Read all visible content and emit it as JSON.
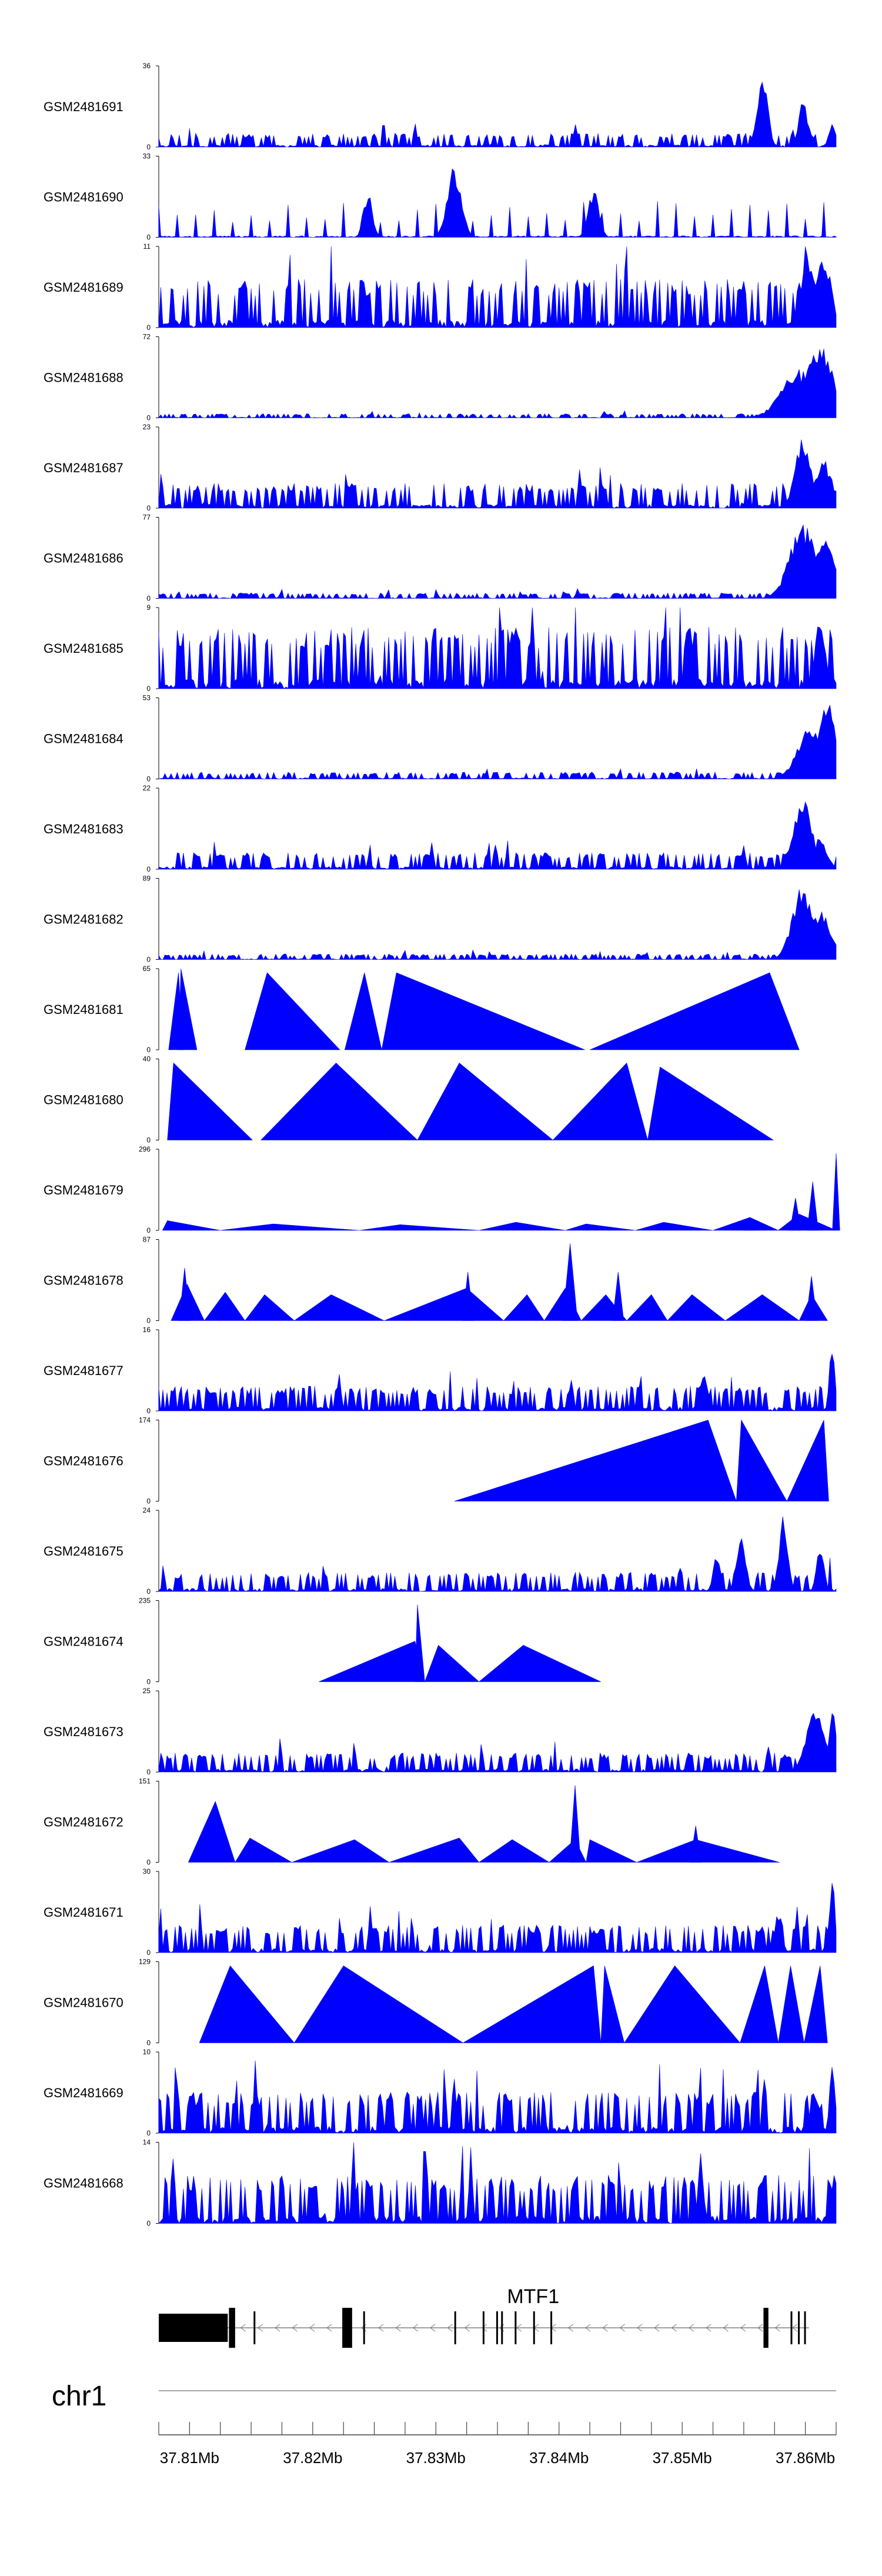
{
  "chart_data": {
    "type": "area",
    "title": "",
    "xlabel": "",
    "ylabel": "",
    "color": "#0000ff",
    "xlim": [
      37.8075,
      37.8625
    ],
    "tracks": [
      {
        "name": "GSM2481691",
        "ymax": "36",
        "ymin": "0",
        "style": "noise",
        "seed": 1,
        "density": 1.0,
        "base": 0.1,
        "peaks": [
          [
            37.8565,
            0.95,
            0.0006
          ],
          [
            37.8598,
            0.6,
            0.0005
          ],
          [
            37.8622,
            0.35,
            0.0004
          ]
        ]
      },
      {
        "name": "GSM2481690",
        "ymax": "33",
        "ymin": "0",
        "style": "spiky",
        "seed": 2,
        "count": 36,
        "lo": 0.18,
        "hi": 0.45,
        "peaks": [
          [
            37.8315,
            0.9,
            0.0008
          ],
          [
            37.8245,
            0.6,
            0.0005
          ],
          [
            37.8428,
            0.6,
            0.0006
          ]
        ]
      },
      {
        "name": "GSM2481689",
        "ymax": "11",
        "ymin": "0",
        "style": "noise",
        "seed": 3,
        "density": 1.0,
        "base": 0.35,
        "peaks": [
          [
            37.8602,
            0.9,
            0.0009
          ],
          [
            37.8615,
            0.95,
            0.0008
          ]
        ]
      },
      {
        "name": "GSM2481688",
        "ymax": "72",
        "ymin": "0",
        "style": "noise",
        "seed": 4,
        "density": 1.0,
        "base": 0.03,
        "peaks": [
          [
            37.8595,
            0.6,
            0.002
          ],
          [
            37.8612,
            0.95,
            0.0015
          ]
        ]
      },
      {
        "name": "GSM2481687",
        "ymax": "23",
        "ymin": "0",
        "style": "noise",
        "seed": 5,
        "density": 1.0,
        "base": 0.18,
        "peaks": [
          [
            37.8598,
            0.9,
            0.0009
          ],
          [
            37.8615,
            0.6,
            0.001
          ]
        ]
      },
      {
        "name": "GSM2481686",
        "ymax": "77",
        "ymin": "0",
        "style": "noise",
        "seed": 6,
        "density": 1.0,
        "base": 0.04,
        "peaks": [
          [
            37.8598,
            0.95,
            0.0015
          ],
          [
            37.8615,
            0.8,
            0.0012
          ]
        ]
      },
      {
        "name": "GSM2481685",
        "ymax": "9",
        "ymin": "0",
        "style": "noise",
        "seed": 7,
        "density": 1.0,
        "base": 0.45,
        "peaks": [
          [
            37.8612,
            0.9,
            0.0006
          ]
        ]
      },
      {
        "name": "GSM2481684",
        "ymax": "53",
        "ymin": "0",
        "style": "noise",
        "seed": 8,
        "density": 1.0,
        "base": 0.05,
        "peaks": [
          [
            37.8605,
            0.7,
            0.0015
          ],
          [
            37.8618,
            0.95,
            0.001
          ]
        ]
      },
      {
        "name": "GSM2481683",
        "ymax": "22",
        "ymin": "0",
        "style": "noise",
        "seed": 9,
        "density": 1.0,
        "base": 0.12,
        "peaks": [
          [
            37.8598,
            0.95,
            0.001
          ],
          [
            37.8612,
            0.4,
            0.0008
          ]
        ]
      },
      {
        "name": "GSM2481682",
        "ymax": "89",
        "ymin": "0",
        "style": "noise",
        "seed": 10,
        "density": 1.0,
        "base": 0.04,
        "peaks": [
          [
            37.8598,
            0.95,
            0.0012
          ],
          [
            37.8612,
            0.6,
            0.0012
          ]
        ]
      },
      {
        "name": "GSM2481681",
        "ymax": "65",
        "ymin": "0",
        "style": "triangles",
        "segments": [
          [
            37.8083,
            37.8091,
            37.8095,
            0.95
          ],
          [
            37.8091,
            37.8093,
            37.8106,
            1.0
          ],
          [
            37.8145,
            37.8163,
            37.8222,
            0.95
          ],
          [
            37.8226,
            37.8242,
            37.8256,
            0.95
          ],
          [
            37.8256,
            37.8268,
            37.8421,
            0.95
          ],
          [
            37.8425,
            37.8571,
            37.8595,
            0.95
          ]
        ]
      },
      {
        "name": "GSM2481680",
        "ymax": "40",
        "ymin": "0",
        "style": "triangles",
        "segments": [
          [
            37.8082,
            37.8087,
            37.8151,
            0.95
          ],
          [
            37.8158,
            37.8219,
            37.8285,
            0.95
          ],
          [
            37.8285,
            37.8319,
            37.8395,
            0.95
          ],
          [
            37.8395,
            37.8455,
            37.8472,
            0.95
          ],
          [
            37.8472,
            37.8482,
            37.8574,
            0.9
          ]
        ]
      },
      {
        "name": "GSM2481679",
        "ymax": "296",
        "ymin": "0",
        "style": "triangles",
        "segments": [
          [
            37.8078,
            37.8082,
            37.8125,
            0.12
          ],
          [
            37.8125,
            37.8168,
            37.8238,
            0.08
          ],
          [
            37.8238,
            37.8271,
            37.8335,
            0.07
          ],
          [
            37.8335,
            37.8365,
            37.8405,
            0.1
          ],
          [
            37.8405,
            37.8422,
            37.8462,
            0.08
          ],
          [
            37.8462,
            37.8485,
            37.8525,
            0.1
          ],
          [
            37.8525,
            37.8555,
            37.8578,
            0.16
          ],
          [
            37.8578,
            37.8595,
            37.8625,
            0.2
          ]
        ],
        "peaks": [
          [
            37.8606,
            0.6,
            0.0003
          ],
          [
            37.8625,
            0.95,
            0.0002
          ],
          [
            37.8592,
            0.4,
            0.0003
          ],
          [
            37.8556,
            0.12,
            0.0004
          ]
        ]
      },
      {
        "name": "GSM2481678",
        "ymax": "87",
        "ymin": "0",
        "style": "triangles",
        "segments": [
          [
            37.8085,
            37.8098,
            37.8112,
            0.45
          ],
          [
            37.8112,
            37.8129,
            37.8145,
            0.35
          ],
          [
            37.8145,
            37.8161,
            37.8185,
            0.32
          ],
          [
            37.8185,
            37.8215,
            37.8258,
            0.32
          ],
          [
            37.8258,
            37.8325,
            37.8355,
            0.4
          ],
          [
            37.8355,
            37.8374,
            37.8388,
            0.32
          ],
          [
            37.8388,
            37.8405,
            37.8418,
            0.4
          ],
          [
            37.8418,
            37.8438,
            37.8455,
            0.32
          ],
          [
            37.8455,
            37.8475,
            37.8488,
            0.32
          ],
          [
            37.8488,
            37.8508,
            37.8535,
            0.32
          ],
          [
            37.8535,
            37.8565,
            37.8595,
            0.32
          ],
          [
            37.8595,
            37.8605,
            37.8618,
            0.32
          ]
        ],
        "peaks": [
          [
            37.8096,
            0.65,
            0.0003
          ],
          [
            37.8326,
            0.6,
            0.0003
          ],
          [
            37.8409,
            0.95,
            0.0004
          ],
          [
            37.8448,
            0.6,
            0.0003
          ],
          [
            37.8605,
            0.55,
            0.0003
          ]
        ]
      },
      {
        "name": "GSM2481677",
        "ymax": "16",
        "ymin": "0",
        "style": "noise",
        "seed": 11,
        "density": 1.0,
        "base": 0.18,
        "peaks": [
          [
            37.8622,
            0.95,
            0.0003
          ],
          [
            37.8517,
            0.5,
            0.0005
          ]
        ]
      },
      {
        "name": "GSM2481676",
        "ymax": "174",
        "ymin": "0",
        "style": "triangles",
        "segments": [
          [
            37.8315,
            37.8521,
            37.8544,
            1.0
          ],
          [
            37.8544,
            37.8548,
            37.8585,
            1.0
          ],
          [
            37.8585,
            37.8615,
            37.8619,
            1.0
          ]
        ]
      },
      {
        "name": "GSM2481675",
        "ymax": "24",
        "ymin": "0",
        "style": "noise",
        "seed": 12,
        "density": 1.0,
        "base": 0.14,
        "peaks": [
          [
            37.8582,
            0.95,
            0.0005
          ],
          [
            37.8548,
            0.8,
            0.0005
          ],
          [
            37.8612,
            0.6,
            0.0004
          ],
          [
            37.8528,
            0.5,
            0.0004
          ]
        ]
      },
      {
        "name": "GSM2481674",
        "ymax": "235",
        "ymin": "0",
        "style": "triangles",
        "segments": [
          [
            37.8205,
            37.8283,
            37.8291,
            0.5
          ],
          [
            37.8283,
            37.8285,
            37.8291,
            0.95
          ],
          [
            37.8291,
            37.8302,
            37.8335,
            0.45
          ],
          [
            37.8335,
            37.8371,
            37.8434,
            0.45
          ]
        ]
      },
      {
        "name": "GSM2481673",
        "ymax": "25",
        "ymin": "0",
        "style": "noise",
        "seed": 13,
        "density": 1.0,
        "base": 0.14,
        "peaks": [
          [
            37.8608,
            0.8,
            0.001
          ],
          [
            37.8622,
            0.95,
            0.0004
          ]
        ]
      },
      {
        "name": "GSM2481672",
        "ymax": "151",
        "ymin": "0",
        "style": "triangles",
        "segments": [
          [
            37.8099,
            37.8121,
            37.8137,
            0.75
          ],
          [
            37.8137,
            37.8149,
            37.8183,
            0.3
          ],
          [
            37.8183,
            37.8234,
            37.8262,
            0.28
          ],
          [
            37.8262,
            37.8319,
            37.8335,
            0.3
          ],
          [
            37.8335,
            37.8362,
            37.8392,
            0.28
          ],
          [
            37.8392,
            37.8413,
            37.8422,
            0.28
          ],
          [
            37.8422,
            37.8425,
            37.8463,
            0.28
          ],
          [
            37.8463,
            37.8511,
            37.8579,
            0.28
          ]
        ],
        "peaks": [
          [
            37.8413,
            0.95,
            0.0003
          ],
          [
            37.8511,
            0.45,
            0.0003
          ]
        ]
      },
      {
        "name": "GSM2481671",
        "ymax": "30",
        "ymin": "0",
        "style": "noise",
        "seed": 14,
        "density": 1.0,
        "base": 0.2,
        "peaks": [
          [
            37.8622,
            0.95,
            0.0003
          ],
          [
            37.8578,
            0.55,
            0.0004
          ]
        ]
      },
      {
        "name": "GSM2481670",
        "ymax": "129",
        "ymin": "0",
        "style": "triangles",
        "segments": [
          [
            37.8108,
            37.8133,
            37.8185,
            0.95
          ],
          [
            37.8185,
            37.8225,
            37.8322,
            0.95
          ],
          [
            37.8322,
            37.8428,
            37.8434,
            0.95
          ],
          [
            37.8434,
            37.8437,
            37.8453,
            0.95
          ],
          [
            37.8453,
            37.8494,
            37.8547,
            0.95
          ],
          [
            37.8547,
            37.8567,
            37.8578,
            0.95
          ],
          [
            37.8578,
            37.8588,
            37.8599,
            0.95
          ],
          [
            37.8599,
            37.8612,
            37.8618,
            0.95
          ]
        ]
      },
      {
        "name": "GSM2481669",
        "ymax": "10",
        "ymin": "0",
        "style": "noise",
        "seed": 15,
        "density": 1.0,
        "base": 0.3,
        "peaks": [
          [
            37.8622,
            0.95,
            0.0003
          ],
          [
            37.8608,
            0.6,
            0.0005
          ]
        ]
      },
      {
        "name": "GSM2481668",
        "ymax": "14",
        "ymin": "0",
        "style": "noise",
        "seed": 16,
        "density": 1.0,
        "base": 0.35,
        "peaks": [
          [
            37.8515,
            0.95,
            0.0003
          ]
        ]
      }
    ],
    "gene": {
      "name": "MTF1",
      "start": 37.8075,
      "end": 37.8603,
      "strand": "-",
      "utr": [
        37.8075,
        37.8131
      ],
      "exons": [
        [
          37.8132,
          37.8137
        ],
        [
          37.8224,
          37.8232
        ],
        [
          37.8566,
          37.857
        ]
      ],
      "thin_exons": [
        37.8152,
        37.8241,
        37.8315,
        37.8338,
        37.8349,
        37.8353,
        37.8364,
        37.8379,
        37.8393,
        37.8588,
        37.8594,
        37.8599
      ]
    },
    "chromosome": "chr1",
    "axis": {
      "ticks": [
        37.8075,
        37.81,
        37.8125,
        37.815,
        37.8175,
        37.82,
        37.8225,
        37.825,
        37.8275,
        37.83,
        37.8325,
        37.835,
        37.8375,
        37.84,
        37.8425,
        37.845,
        37.8475,
        37.85,
        37.8525,
        37.855,
        37.8575,
        37.86,
        37.8625
      ],
      "labels": [
        {
          "pos": 37.81,
          "text": "37.81Mb"
        },
        {
          "pos": 37.82,
          "text": "37.82Mb"
        },
        {
          "pos": 37.83,
          "text": "37.83Mb"
        },
        {
          "pos": 37.84,
          "text": "37.84Mb"
        },
        {
          "pos": 37.85,
          "text": "37.85Mb"
        },
        {
          "pos": 37.86,
          "text": "37.86Mb"
        }
      ]
    }
  }
}
